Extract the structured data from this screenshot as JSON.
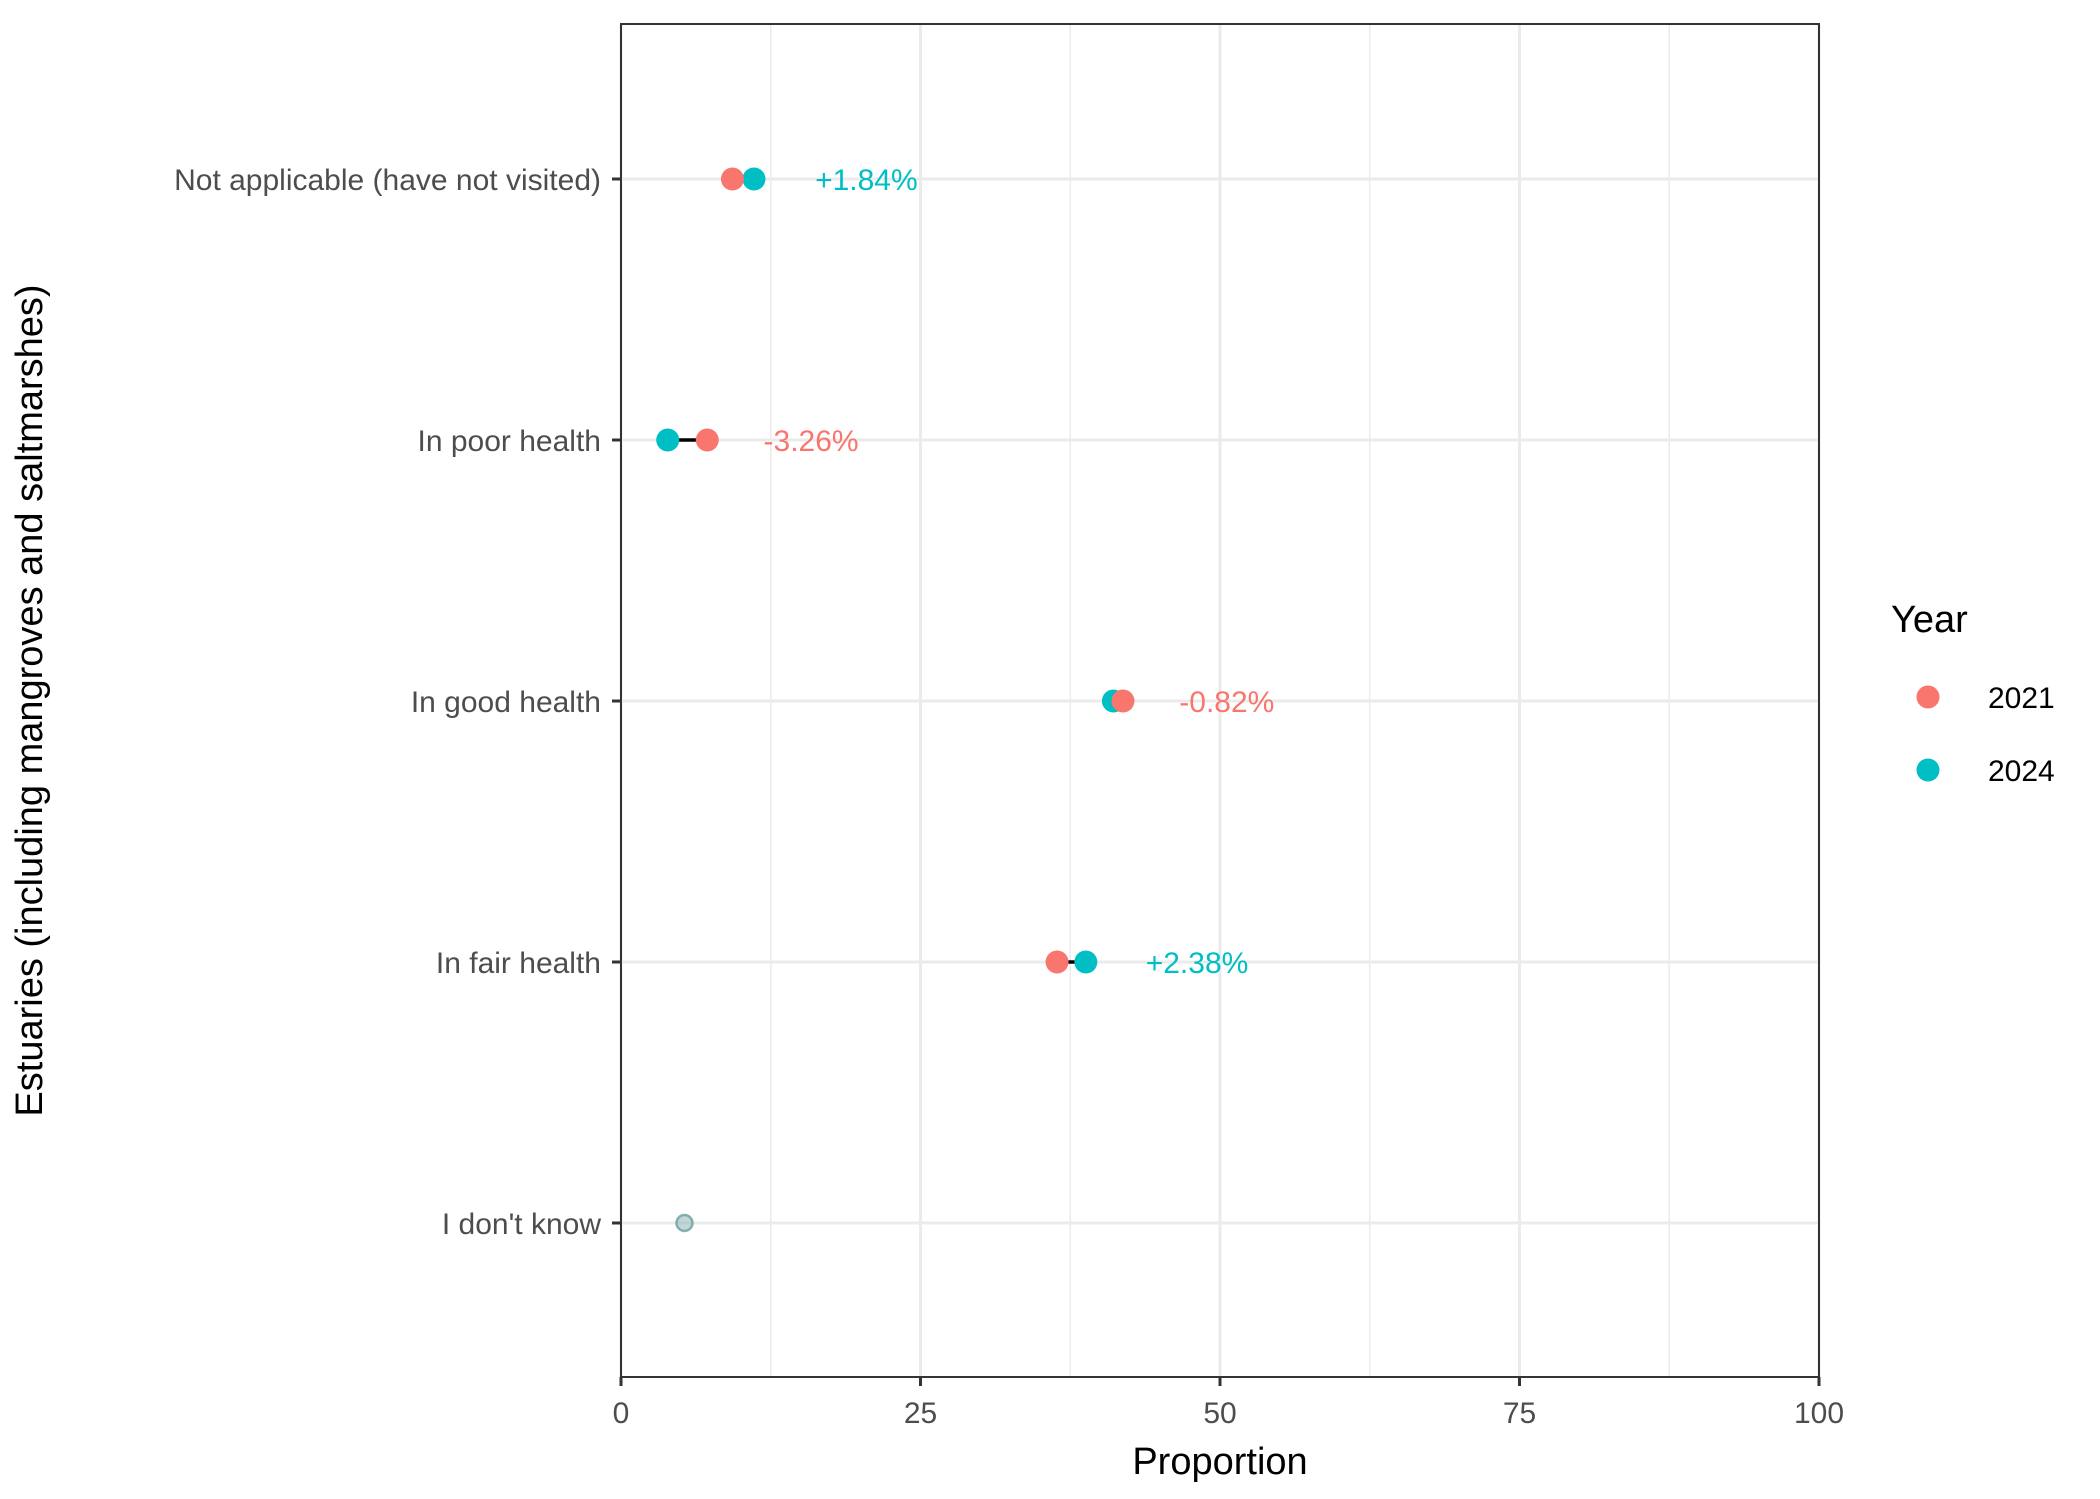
{
  "colors": {
    "y2021": "#F8766D",
    "y2024": "#00BFC4",
    "segment": "#000000",
    "grid": "#ebebeb",
    "panel_border": "#333333"
  },
  "chart_data": {
    "type": "dumbbell",
    "xlabel": "Proportion",
    "ylabel": "Estuaries (including mangroves and saltmarshes)",
    "xlim": [
      0,
      100
    ],
    "x_ticks": [
      "0",
      "25",
      "50",
      "75",
      "100"
    ],
    "x_tick_values": [
      0,
      25,
      50,
      75,
      100
    ],
    "categories": [
      "Not applicable (have not visited)",
      "In poor health",
      "In good health",
      "In fair health",
      "I don't know"
    ],
    "series": [
      {
        "name": "2021",
        "values": [
          9.3,
          7.2,
          41.9,
          36.4,
          5.3
        ]
      },
      {
        "name": "2024",
        "values": [
          11.1,
          3.9,
          41.1,
          38.8,
          5.3
        ]
      }
    ],
    "annotations": [
      {
        "category": "Not applicable (have not visited)",
        "text": "+1.84%",
        "series": "2024",
        "x": 16.2
      },
      {
        "category": "In poor health",
        "text": "-3.26%",
        "series": "2021",
        "x": 11.9
      },
      {
        "category": "In good health",
        "text": "-0.82%",
        "series": "2021",
        "x": 46.6
      },
      {
        "category": "In fair health",
        "text": "+2.38%",
        "series": "2024",
        "x": 43.8
      }
    ],
    "faded_points": [
      {
        "category": "I don't know",
        "x": 5.3
      }
    ],
    "grid": true,
    "legend": {
      "title": "Year",
      "position": "right",
      "entries": [
        "2021",
        "2024"
      ]
    }
  }
}
